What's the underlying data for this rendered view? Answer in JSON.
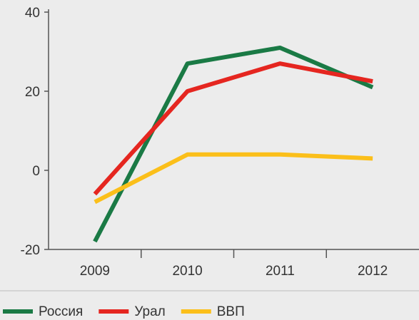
{
  "chart_data": {
    "type": "line",
    "categories": [
      "2009",
      "2010",
      "2011",
      "2012"
    ],
    "series": [
      {
        "name": "Россия",
        "color": "#1a7a45",
        "values": [
          -18,
          27,
          31,
          21
        ]
      },
      {
        "name": "Урал",
        "color": "#e52620",
        "values": [
          -6,
          20,
          27,
          22.5
        ]
      },
      {
        "name": "ВВП",
        "color": "#fbbf1a",
        "values": [
          -8,
          4,
          4,
          3
        ]
      }
    ],
    "ylim": [
      -20,
      40
    ],
    "yticks": [
      -20,
      0,
      20,
      40
    ],
    "grid": false,
    "legend": "bottom"
  }
}
